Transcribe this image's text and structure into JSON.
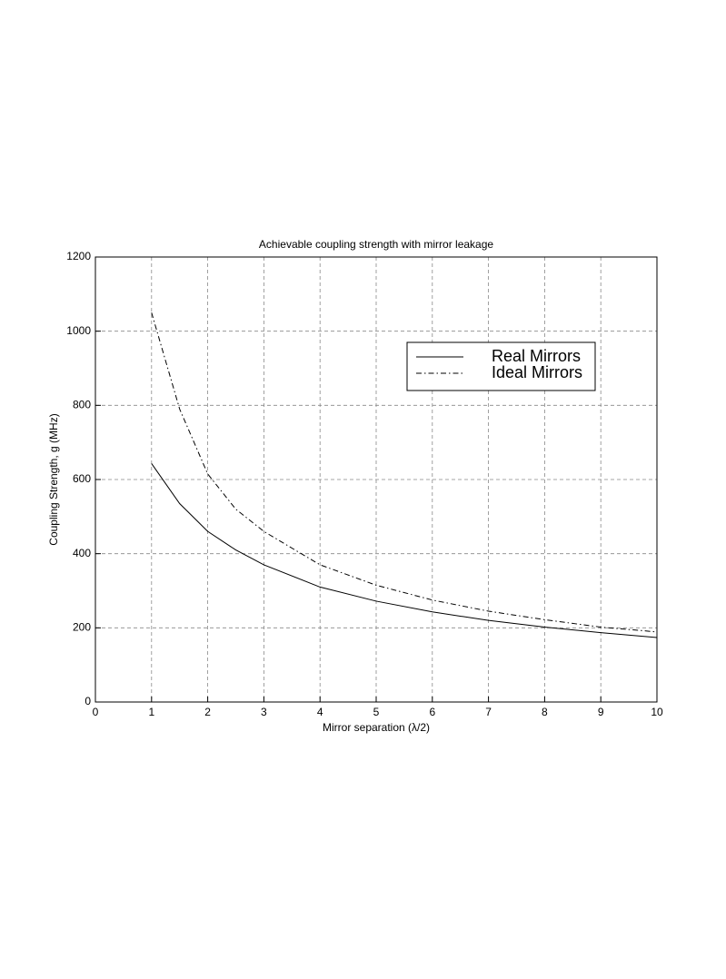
{
  "chart_data": {
    "type": "line",
    "title": "Achievable coupling strength with mirror leakage",
    "x_label": "Mirror separation  (λ/2)",
    "y_label": "Coupling Strength, g (MHz)",
    "x": [
      1,
      1.5,
      2,
      2.5,
      3,
      4,
      5,
      6,
      7,
      8,
      9,
      10
    ],
    "series": [
      {
        "name": "Real Mirrors",
        "color": "#000000",
        "linestyle": "solid",
        "values": [
          643,
          535,
          460,
          410,
          370,
          310,
          272,
          243,
          220,
          202,
          187,
          174
        ]
      },
      {
        "name": "Ideal Mirrors",
        "color": "#000000",
        "linestyle": "dashdot",
        "values": [
          1050,
          790,
          615,
          520,
          460,
          370,
          315,
          275,
          245,
          222,
          202,
          189
        ]
      }
    ],
    "xlim": [
      0,
      10
    ],
    "xticks": [
      0,
      1,
      2,
      3,
      4,
      5,
      6,
      7,
      8,
      9,
      10
    ],
    "ylim": [
      0,
      1200
    ],
    "yticks": [
      0,
      200,
      400,
      600,
      800,
      1000,
      1200
    ],
    "grid": true,
    "legend": "upper right"
  }
}
